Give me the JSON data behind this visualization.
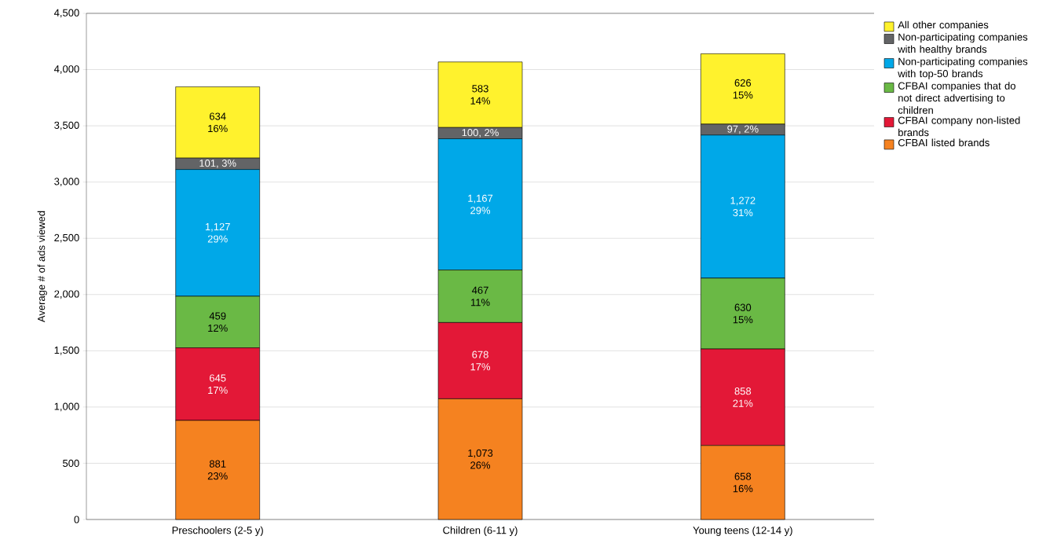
{
  "chart_data": {
    "type": "bar",
    "stacked": true,
    "ylabel": "Average # of ads viewed",
    "categories": [
      "Preschoolers (2-5 y)",
      "Children (6-11 y)",
      "Young teens (12-14 y)"
    ],
    "series": [
      {
        "name": "CFBAI listed brands",
        "color": "#f58220",
        "values": [
          881,
          1073,
          658
        ],
        "value_labels": [
          "881 23%",
          "1,073 26%",
          "658 16%"
        ]
      },
      {
        "name": "CFBAI company non-listed brands",
        "color": "#e31837",
        "values": [
          645,
          678,
          858
        ],
        "value_labels": [
          "645 17%",
          "678 17%",
          "858 21%"
        ]
      },
      {
        "name": "CFBAI companies that do not direct advertising to children",
        "color": "#6ab945",
        "values": [
          459,
          467,
          630
        ],
        "value_labels": [
          "459 12%",
          "467 11%",
          "630 15%"
        ]
      },
      {
        "name": "Non-participating companies with top-50 brands",
        "color": "#00a8e8",
        "values": [
          1127,
          1167,
          1272
        ],
        "value_labels": [
          "1,127 29%",
          "1,167 29%",
          "1,272 31%"
        ]
      },
      {
        "name": "Non-participating companies with healthy brands",
        "color": "#636466",
        "values": [
          101,
          100,
          97
        ],
        "value_labels": [
          "101, 3%",
          "100, 2%",
          "97, 2%"
        ]
      },
      {
        "name": "All other companies",
        "color": "#fff22d",
        "values": [
          634,
          583,
          626
        ],
        "value_labels": [
          "634 16%",
          "583 14%",
          "626 15%"
        ]
      }
    ],
    "ylim": [
      0,
      4500
    ],
    "yticks": [
      0,
      500,
      {
        "value": 1000,
        "label": "1,000"
      },
      {
        "value": 1500,
        "label": "1,500"
      },
      {
        "value": 2000,
        "label": "2,000"
      },
      {
        "value": 2500,
        "label": "2,500"
      },
      {
        "value": 3000,
        "label": "3,000"
      },
      {
        "value": 3500,
        "label": "3,500"
      },
      {
        "value": 4000,
        "label": "4,000"
      },
      {
        "value": 4500,
        "label": "4,500"
      }
    ],
    "grid": "y",
    "legend": "right"
  }
}
